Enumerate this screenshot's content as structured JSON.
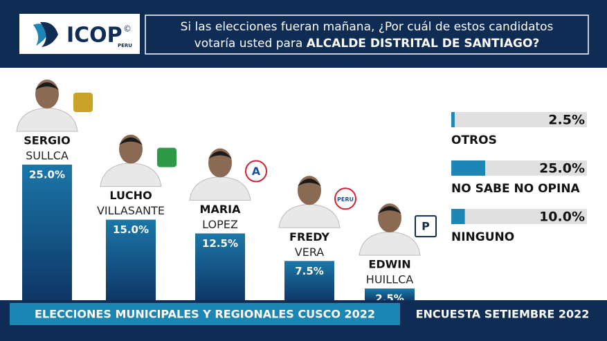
{
  "logo": {
    "name": "ICOP",
    "country": "PERU",
    "mark": "©"
  },
  "question": {
    "line1": "Si las elecciones fueran mañana, ¿Por cuál de estos candidatos",
    "line2": "votaría usted para",
    "highlight": "ALCALDE DISTRITAL DE SANTIAGO?"
  },
  "chart_data": [
    {
      "type": "bar",
      "first_names": [
        "SERGIO",
        "LUCHO",
        "MARIA",
        "FREDY",
        "EDWIN"
      ],
      "categories": [
        "SULLCA",
        "VILLASANTE",
        "LOPEZ",
        "VERA",
        "HUILLCA"
      ],
      "party_logo_text": [
        null,
        null,
        "A",
        "PERU",
        "P"
      ],
      "values": [
        25.0,
        15.0,
        12.5,
        7.5,
        2.5
      ],
      "value_labels": [
        "25.0%",
        "15.0%",
        "12.5%",
        "7.5%",
        "2.5%"
      ],
      "ylim": [
        0,
        25
      ],
      "color": "#15558a"
    },
    {
      "type": "hbar",
      "categories": [
        "OTROS",
        "NO SABE NO OPINA",
        "NINGUNO"
      ],
      "values": [
        2.5,
        25.0,
        10.0
      ],
      "value_labels": [
        "2.5%",
        "25.0%",
        "10.0%"
      ],
      "xlim": [
        0,
        100
      ],
      "color": "#1d86b4",
      "track_color": "#e0e0e0"
    }
  ],
  "footer": {
    "left": "ELECCIONES MUNICIPALES Y REGIONALES CUSCO 2022",
    "right": "ENCUESTA SETIEMBRE 2022"
  }
}
